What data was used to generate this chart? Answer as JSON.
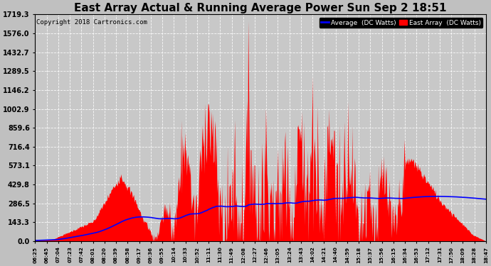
{
  "title": "East Array Actual & Running Average Power Sun Sep 2 18:51",
  "copyright": "Copyright 2018 Cartronics.com",
  "legend_labels": [
    "Average  (DC Watts)",
    "East Array  (DC Watts)"
  ],
  "legend_colors": [
    "blue",
    "red"
  ],
  "yticks": [
    0.0,
    143.3,
    286.5,
    429.8,
    573.1,
    716.4,
    859.6,
    1002.9,
    1146.2,
    1289.5,
    1432.7,
    1576.0,
    1719.3
  ],
  "ymax": 1719.3,
  "ymin": 0.0,
  "bg_color": "#c0c0c0",
  "plot_bg_color": "#c8c8c8",
  "grid_color": "#ffffff",
  "title_fontsize": 11,
  "x_labels": [
    "06:25",
    "06:45",
    "07:04",
    "07:23",
    "07:42",
    "08:01",
    "08:20",
    "08:39",
    "08:58",
    "09:17",
    "09:36",
    "09:55",
    "10:14",
    "10:33",
    "10:52",
    "11:11",
    "11:30",
    "11:49",
    "12:08",
    "12:27",
    "12:46",
    "13:05",
    "13:24",
    "13:43",
    "14:02",
    "14:21",
    "14:40",
    "14:59",
    "15:18",
    "15:37",
    "15:56",
    "16:15",
    "16:34",
    "16:53",
    "17:12",
    "17:31",
    "17:50",
    "18:09",
    "18:28",
    "18:47"
  ]
}
